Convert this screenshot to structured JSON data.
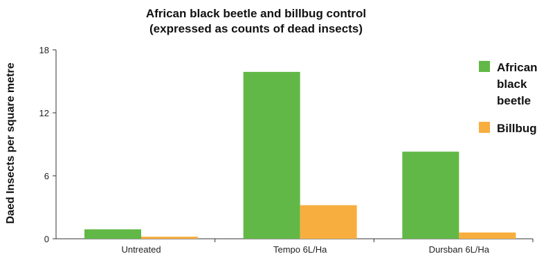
{
  "chart_data": {
    "type": "bar",
    "title": "African black beetle and billbug control",
    "subtitle": "(expressed as counts of dead insects)",
    "ylabel": "Daed Insects per square metre",
    "xlabel": "",
    "ylim": [
      0,
      18
    ],
    "yticks": [
      "0",
      "6",
      "12",
      "18"
    ],
    "categories": [
      "Untreated",
      "Tempo 6L/Ha",
      "Dursban 6L/Ha"
    ],
    "series": [
      {
        "name": "African black beetle",
        "color": "#62b847",
        "values": [
          0.9,
          15.9,
          8.3
        ]
      },
      {
        "name": "Billbug",
        "color": "#f7ae3f",
        "values": [
          0.2,
          3.2,
          0.6
        ]
      }
    ],
    "legend_position": "right",
    "grid": false
  }
}
